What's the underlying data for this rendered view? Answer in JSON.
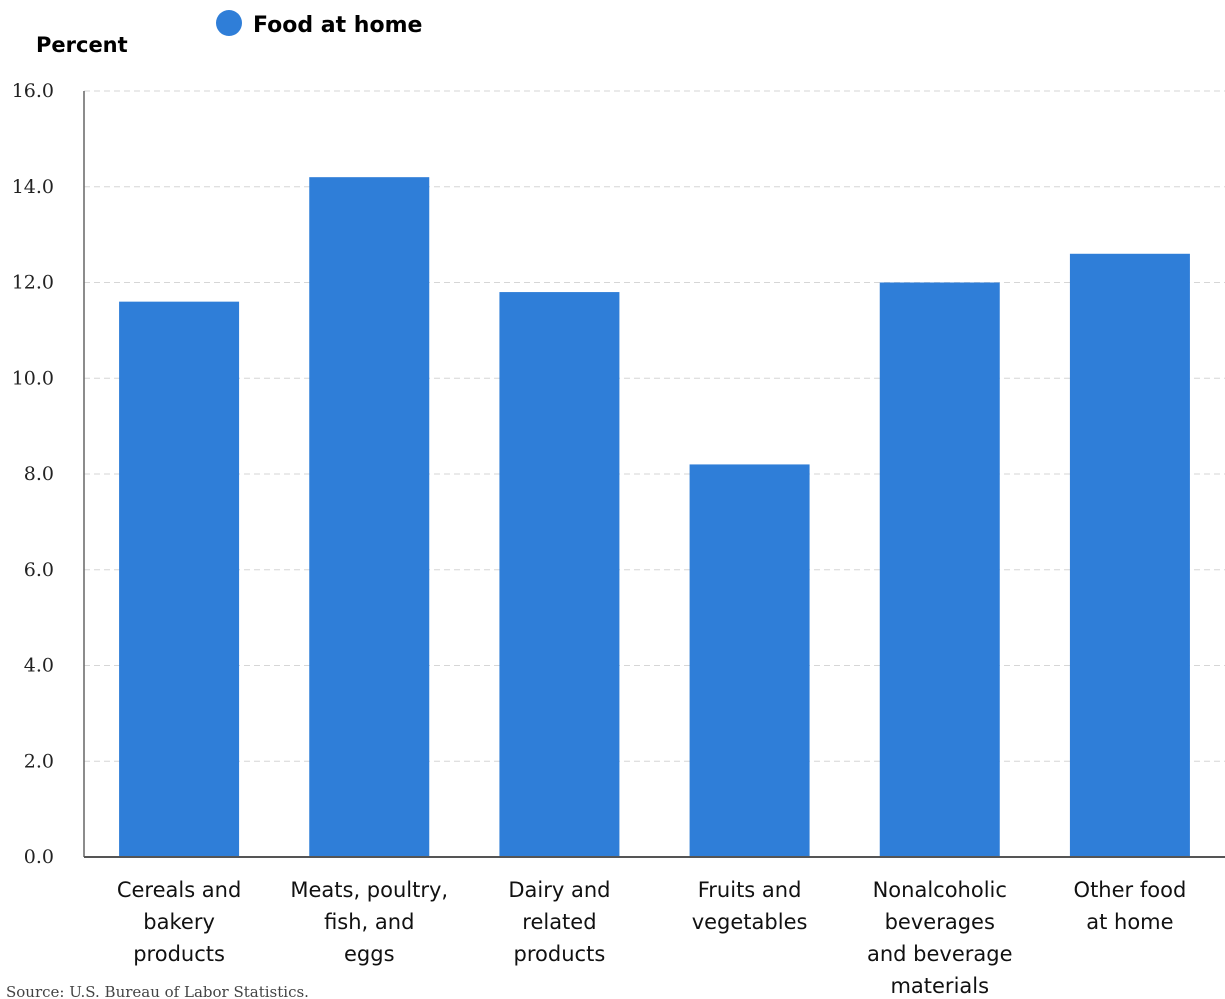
{
  "chart_data": {
    "type": "bar",
    "ylabel": "Percent",
    "ylim": [
      0,
      16
    ],
    "yticks": [
      "0.0",
      "2.0",
      "4.0",
      "6.0",
      "8.0",
      "10.0",
      "12.0",
      "14.0",
      "16.0"
    ],
    "grid": true,
    "legend_position": "top",
    "categories": [
      [
        "Cereals and",
        "bakery",
        "products"
      ],
      [
        "Meats, poultry,",
        "fish, and",
        "eggs"
      ],
      [
        "Dairy and",
        "related",
        "products"
      ],
      [
        "Fruits and",
        "vegetables"
      ],
      [
        "Nonalcoholic",
        "beverages",
        "and beverage",
        "materials"
      ],
      [
        "Other food",
        "at home"
      ]
    ],
    "series": [
      {
        "name": "Food at home",
        "color": "#2f7ed8",
        "values": [
          11.6,
          14.2,
          11.8,
          8.2,
          12.0,
          12.6
        ]
      }
    ],
    "source": "Source: U.S. Bureau of Labor Statistics."
  }
}
